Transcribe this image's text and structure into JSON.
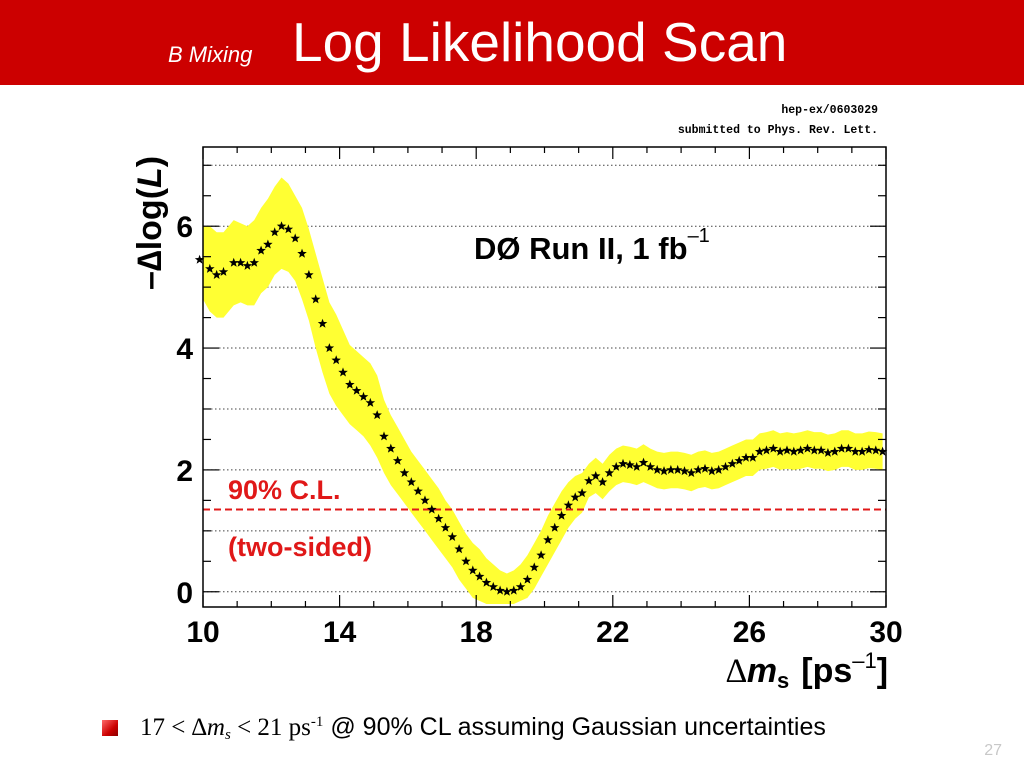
{
  "slide": {
    "subtitle": "B Mixing",
    "title": "Log Likelihood Scan",
    "page_number": "27",
    "footer": {
      "lower": "17",
      "lt1": "<",
      "delta": "∆",
      "m": "m",
      "s": "s",
      "lt2": "<",
      "upper": "21",
      "unit": "ps",
      "unit_exp": "-1",
      "rest": " @ 90% CL assuming Gaussian uncertainties"
    },
    "colors": {
      "header": "#cc0000",
      "band": "#ffff33",
      "cl_line": "#e01818",
      "markers": "#000000"
    }
  },
  "chart_data": {
    "type": "scatter",
    "reference_lines": [
      "hep-ex/0603029",
      "submitted to Phys. Rev. Lett."
    ],
    "annotation": {
      "prefix": "DØ Run II, 1 fb",
      "exp": "–1"
    },
    "cl": {
      "level": 1.35,
      "label1": "90% C.L.",
      "label2": "(two-sided)"
    },
    "xlabel": {
      "delta": "∆",
      "m": "m",
      "sub": "s",
      "unit": "[ps",
      "exp": "–1",
      "close": "]"
    },
    "ylabel": {
      "prefix": "–∆log(",
      "var": "L",
      "suffix": ")"
    },
    "xlim": [
      10,
      30
    ],
    "ylim": [
      -0.25,
      7.3
    ],
    "xticks": [
      "10",
      "14",
      "18",
      "22",
      "26",
      "30"
    ],
    "yticks": [
      "0",
      "2",
      "4",
      "6"
    ],
    "ygrid": [
      0,
      1,
      2,
      3,
      4,
      5,
      6,
      7
    ],
    "x": [
      9.9,
      10.2,
      10.4,
      10.6,
      10.9,
      11.1,
      11.3,
      11.5,
      11.7,
      11.9,
      12.1,
      12.3,
      12.5,
      12.7,
      12.9,
      13.1,
      13.3,
      13.5,
      13.7,
      13.9,
      14.1,
      14.3,
      14.5,
      14.7,
      14.9,
      15.1,
      15.3,
      15.5,
      15.7,
      15.9,
      16.1,
      16.3,
      16.5,
      16.7,
      16.9,
      17.1,
      17.3,
      17.5,
      17.7,
      17.9,
      18.1,
      18.3,
      18.5,
      18.7,
      18.9,
      19.1,
      19.3,
      19.5,
      19.7,
      19.9,
      20.1,
      20.3,
      20.5,
      20.7,
      20.9,
      21.1,
      21.3,
      21.5,
      21.7,
      21.9,
      22.1,
      22.3,
      22.5,
      22.7,
      22.9,
      23.1,
      23.3,
      23.5,
      23.7,
      23.9,
      24.1,
      24.3,
      24.5,
      24.7,
      24.9,
      25.1,
      25.3,
      25.5,
      25.7,
      25.9,
      26.1,
      26.3,
      26.5,
      26.7,
      26.9,
      27.1,
      27.3,
      27.5,
      27.7,
      27.9,
      28.1,
      28.3,
      28.5,
      28.7,
      28.9,
      29.1,
      29.3,
      29.5,
      29.7,
      29.9
    ],
    "y": [
      5.45,
      5.3,
      5.2,
      5.25,
      5.4,
      5.4,
      5.35,
      5.4,
      5.6,
      5.7,
      5.9,
      6.0,
      5.95,
      5.8,
      5.55,
      5.2,
      4.8,
      4.4,
      4.0,
      3.8,
      3.6,
      3.4,
      3.3,
      3.2,
      3.1,
      2.9,
      2.55,
      2.35,
      2.15,
      1.95,
      1.8,
      1.65,
      1.5,
      1.35,
      1.2,
      1.05,
      0.9,
      0.7,
      0.5,
      0.35,
      0.25,
      0.15,
      0.08,
      0.02,
      0.0,
      0.02,
      0.08,
      0.2,
      0.4,
      0.6,
      0.85,
      1.05,
      1.25,
      1.42,
      1.55,
      1.62,
      1.82,
      1.9,
      1.8,
      1.95,
      2.05,
      2.1,
      2.08,
      2.05,
      2.12,
      2.05,
      2.0,
      1.98,
      2.0,
      2.0,
      1.98,
      1.95,
      2.0,
      2.02,
      1.98,
      2.0,
      2.05,
      2.1,
      2.15,
      2.2,
      2.2,
      2.3,
      2.32,
      2.35,
      2.3,
      2.32,
      2.3,
      2.32,
      2.35,
      2.32,
      2.32,
      2.28,
      2.3,
      2.35,
      2.35,
      2.3,
      2.3,
      2.33,
      2.32,
      2.3
    ],
    "band_lower": [
      4.9,
      4.6,
      4.5,
      4.5,
      4.7,
      4.75,
      4.7,
      4.7,
      4.9,
      5.0,
      5.2,
      5.3,
      5.25,
      5.1,
      4.8,
      4.45,
      4.0,
      3.6,
      3.25,
      3.05,
      2.9,
      2.75,
      2.65,
      2.55,
      2.4,
      2.2,
      1.95,
      1.75,
      1.6,
      1.45,
      1.3,
      1.15,
      1.0,
      0.85,
      0.7,
      0.55,
      0.4,
      0.2,
      0.05,
      -0.1,
      -0.15,
      -0.2,
      -0.2,
      -0.2,
      -0.2,
      -0.2,
      -0.15,
      -0.1,
      0.05,
      0.25,
      0.45,
      0.65,
      0.85,
      1.05,
      1.2,
      1.3,
      1.55,
      1.62,
      1.52,
      1.65,
      1.75,
      1.8,
      1.78,
      1.75,
      1.8,
      1.75,
      1.7,
      1.68,
      1.7,
      1.7,
      1.68,
      1.65,
      1.7,
      1.72,
      1.68,
      1.7,
      1.75,
      1.8,
      1.85,
      1.9,
      1.9,
      2.0,
      2.02,
      2.05,
      2.0,
      2.02,
      2.0,
      2.02,
      2.05,
      2.02,
      2.02,
      1.98,
      2.0,
      2.05,
      2.05,
      2.0,
      2.0,
      2.03,
      2.02,
      2.0
    ],
    "band_upper": [
      6.0,
      6.0,
      5.9,
      5.9,
      6.1,
      6.05,
      6.0,
      6.1,
      6.3,
      6.45,
      6.65,
      6.8,
      6.7,
      6.5,
      6.3,
      5.95,
      5.55,
      5.15,
      4.75,
      4.55,
      4.3,
      4.05,
      3.95,
      3.85,
      3.75,
      3.55,
      3.15,
      2.9,
      2.7,
      2.5,
      2.3,
      2.15,
      2.0,
      1.85,
      1.7,
      1.5,
      1.35,
      1.15,
      0.95,
      0.8,
      0.7,
      0.55,
      0.45,
      0.35,
      0.3,
      0.35,
      0.45,
      0.6,
      0.8,
      1.0,
      1.25,
      1.45,
      1.65,
      1.8,
      1.9,
      1.95,
      2.1,
      2.2,
      2.1,
      2.25,
      2.35,
      2.4,
      2.38,
      2.35,
      2.42,
      2.35,
      2.3,
      2.28,
      2.3,
      2.3,
      2.28,
      2.25,
      2.3,
      2.32,
      2.28,
      2.3,
      2.35,
      2.4,
      2.45,
      2.5,
      2.5,
      2.6,
      2.62,
      2.65,
      2.6,
      2.62,
      2.6,
      2.62,
      2.65,
      2.62,
      2.62,
      2.58,
      2.6,
      2.65,
      2.65,
      2.6,
      2.6,
      2.63,
      2.62,
      2.6
    ]
  }
}
